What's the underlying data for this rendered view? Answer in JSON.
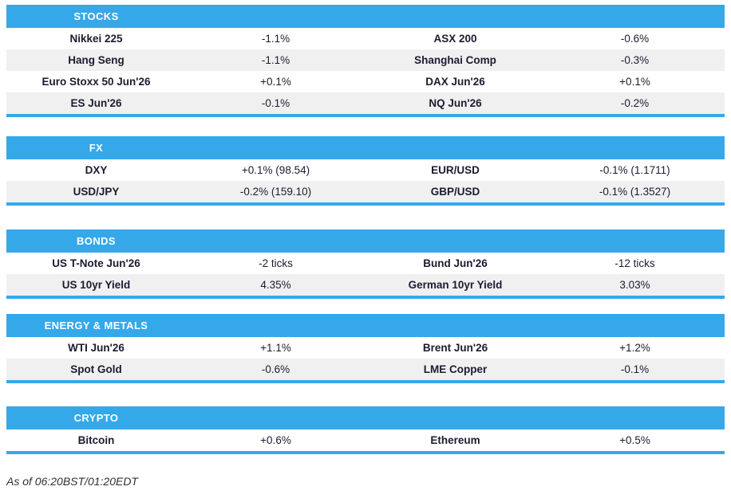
{
  "style": {
    "accent": "#35a8ea",
    "alt_row": "#f0f0f1",
    "text": "#1b1c30",
    "header_text": "#ffffff"
  },
  "chart_data": {
    "type": "table",
    "columns_per_row": [
      "instrument",
      "change",
      "instrument",
      "change"
    ],
    "sections": [
      {
        "title": "STOCKS",
        "rows": [
          [
            "Nikkei 225",
            "-1.1%",
            "ASX 200",
            "-0.6%"
          ],
          [
            "Hang Seng",
            "-1.1%",
            "Shanghai Comp",
            "-0.3%"
          ],
          [
            "Euro Stoxx 50 Jun'26",
            "+0.1%",
            "DAX Jun'26",
            "+0.1%"
          ],
          [
            "ES Jun'26",
            "-0.1%",
            "NQ Jun'26",
            "-0.2%"
          ]
        ]
      },
      {
        "title": "FX",
        "rows": [
          [
            "DXY",
            "+0.1% (98.54)",
            "EUR/USD",
            "-0.1% (1.1711)"
          ],
          [
            "USD/JPY",
            "-0.2% (159.10)",
            "GBP/USD",
            "-0.1% (1.3527)"
          ]
        ]
      },
      {
        "title": "BONDS",
        "rows": [
          [
            "US T-Note Jun'26",
            "-2 ticks",
            "Bund Jun'26",
            "-12 ticks"
          ],
          [
            "US 10yr Yield",
            "4.35%",
            "German 10yr Yield",
            "3.03%"
          ]
        ]
      },
      {
        "title": "ENERGY & METALS",
        "rows": [
          [
            "WTI Jun'26",
            "+1.1%",
            "Brent Jun'26",
            "+1.2%"
          ],
          [
            "Spot Gold",
            "-0.6%",
            "LME Copper",
            "-0.1%"
          ]
        ]
      },
      {
        "title": "CRYPTO",
        "rows": [
          [
            "Bitcoin",
            "+0.6%",
            "Ethereum",
            "+0.5%"
          ]
        ]
      }
    ],
    "footer": "As of 06:20BST/01:20EDT"
  }
}
